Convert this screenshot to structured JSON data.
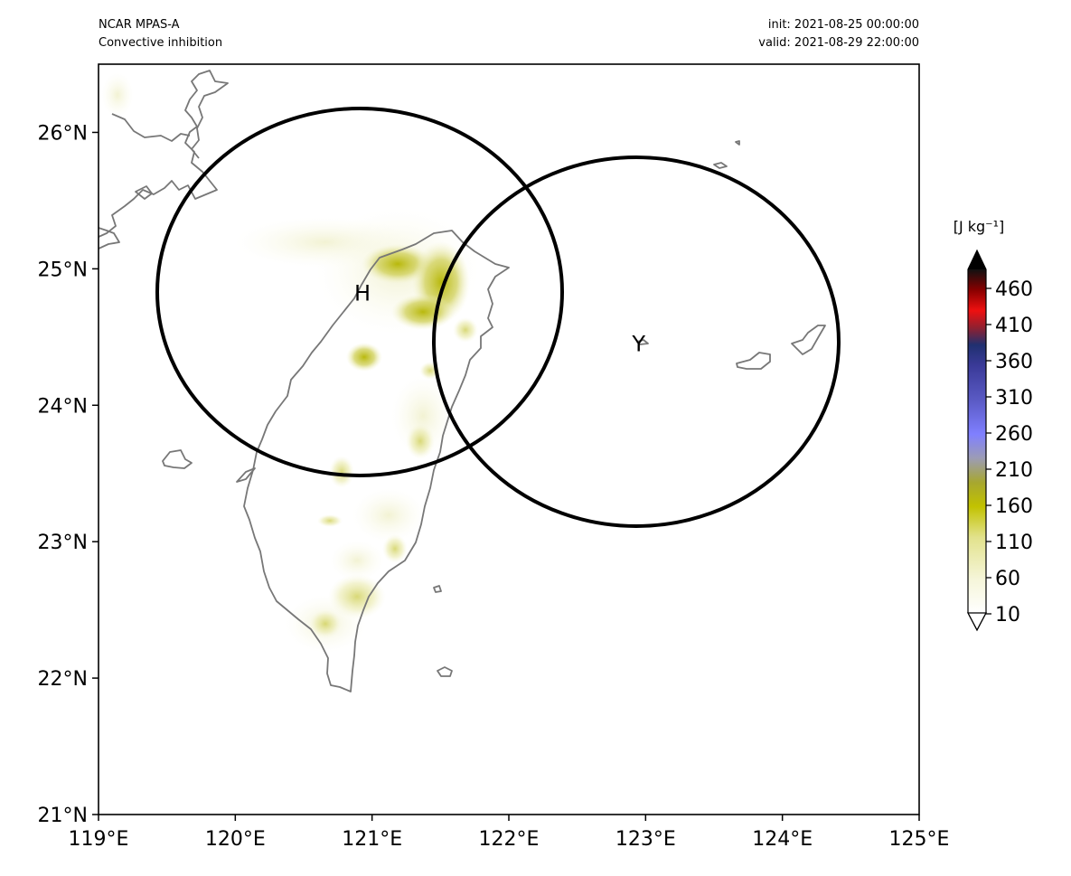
{
  "header": {
    "model": "NCAR MPAS-A",
    "field": "Convective inhibition",
    "init": "init: 2021-08-25 00:00:00",
    "valid": "valid: 2021-08-29 22:00:00"
  },
  "axes": {
    "lon_ticks": [
      "119°E",
      "120°E",
      "121°E",
      "122°E",
      "123°E",
      "124°E",
      "125°E"
    ],
    "lat_ticks": [
      "21°N",
      "22°N",
      "23°N",
      "24°N",
      "25°N",
      "26°N"
    ],
    "lon_range": [
      119,
      125
    ],
    "lat_range": [
      21,
      26.5
    ]
  },
  "colorbar": {
    "unit": "[J kg⁻¹]",
    "ticks": [
      "10",
      "60",
      "110",
      "160",
      "210",
      "260",
      "310",
      "360",
      "410",
      "460"
    ],
    "colors": [
      "#fffff0",
      "#efefb8",
      "#d4d45c",
      "#b8b800",
      "#9a9a50",
      "#8888ff",
      "#5050b0",
      "#2a2a88",
      "#e00000",
      "#000000"
    ]
  },
  "markers": [
    {
      "label": "H",
      "lon": 120.93,
      "lat": 24.82
    },
    {
      "label": "Y",
      "lon": 122.95,
      "lat": 24.45
    }
  ],
  "colors": {
    "coastline": "#777777",
    "circle": "#000000",
    "field_low": "#f4f4d4",
    "field_mid": "#d9d976",
    "field_high": "#b5b500"
  }
}
